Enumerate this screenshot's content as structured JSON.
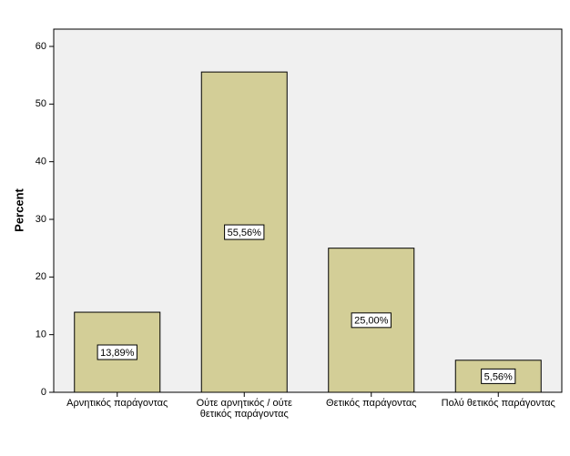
{
  "chart_data": {
    "type": "bar",
    "y_label": "Percent",
    "categories": [
      "Αρνητικός παράγοντας",
      "Ούτε αρνητικός / ούτε\nθετικός παράγοντας",
      "Θετικός παράγοντας",
      "Πολύ θετικός παράγοντας"
    ],
    "values": [
      13.89,
      55.56,
      25.0,
      5.56
    ],
    "value_labels": [
      "13,89%",
      "55,56%",
      "25,00%",
      "5,56%"
    ],
    "color": "#d3ce97",
    "ylim": [
      0,
      63
    ],
    "yticks": [
      0,
      10,
      20,
      30,
      40,
      50,
      60
    ]
  }
}
